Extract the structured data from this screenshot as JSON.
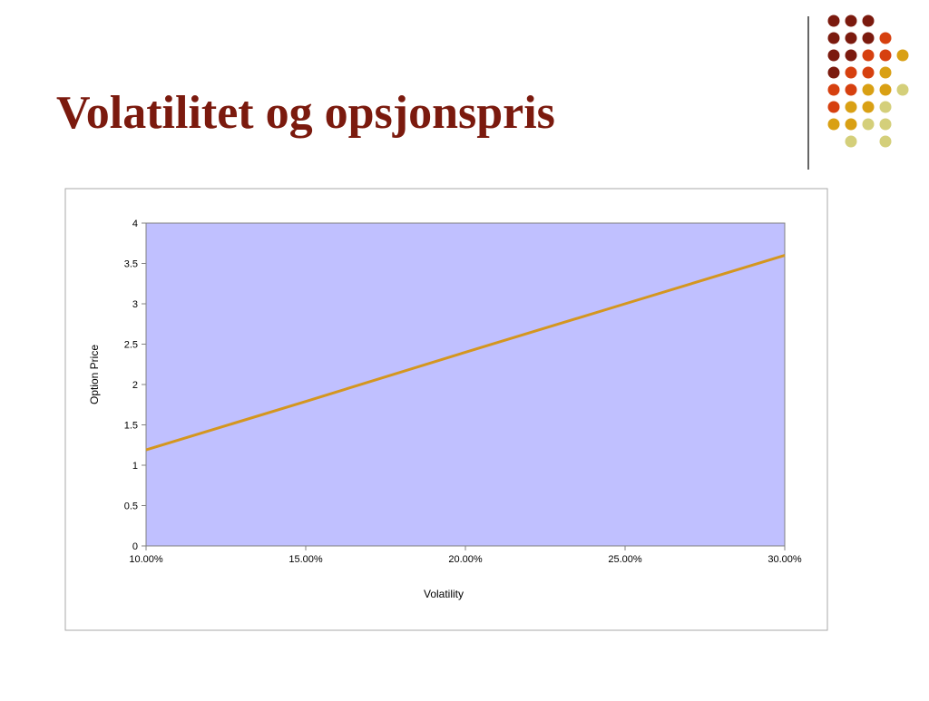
{
  "chart_data": {
    "type": "line",
    "title": "Volatilitet og opsjonspris",
    "x_label": "Volatility",
    "y_label": "Option Price",
    "x": [
      10,
      15,
      20,
      25,
      30
    ],
    "series": [
      {
        "name": "Option Price",
        "color": "#d4961f",
        "values": [
          1.19,
          1.79,
          2.4,
          3.0,
          3.6
        ]
      }
    ],
    "xlim": [
      10,
      30
    ],
    "xticks": [
      {
        "value": 10,
        "label": "10.00%"
      },
      {
        "value": 15,
        "label": "15.00%"
      },
      {
        "value": 20,
        "label": "20.00%"
      },
      {
        "value": 25,
        "label": "25.00%"
      },
      {
        "value": 30,
        "label": "30.00%"
      }
    ],
    "ylim": [
      0,
      4
    ],
    "yticks": [
      0,
      0.5,
      1,
      1.5,
      2,
      2.5,
      3,
      3.5,
      4
    ],
    "grid": false,
    "plot_background": "#c0c0ff"
  }
}
